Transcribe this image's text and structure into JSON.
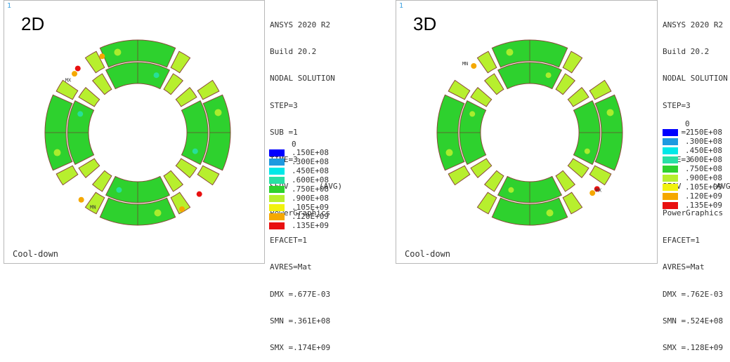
{
  "panels": [
    {
      "id": "2d",
      "corner": "1",
      "label": "2D",
      "footer": "Cool-down",
      "markers": {
        "min": "MN",
        "max": "MX"
      },
      "info": {
        "line1": "ANSYS 2020 R2",
        "line2": "Build 20.2",
        "line3": "NODAL SOLUTION",
        "step": "STEP=3",
        "sub": "SUB =1",
        "time": "TIME=3",
        "seqv": "SEQV",
        "avg": "(AVG)",
        "graphics": "PowerGraphics",
        "efacet": "EFACET=1",
        "avres": "AVRES=Mat",
        "dmx": "DMX =.677E-03",
        "smn": "SMN =.361E+08",
        "smx": "SMX =.174E+09"
      }
    },
    {
      "id": "3d",
      "corner": "1",
      "label": "3D",
      "footer": "Cool-down",
      "markers": {
        "min": "MN",
        "max": "MX"
      },
      "info": {
        "line1": "ANSYS 2020 R2",
        "line2": "Build 20.2",
        "line3": "NODAL SOLUTION",
        "step": "STEP=3",
        "sub": "SUB =2",
        "time": "TIME=3",
        "seqv": "SEQV",
        "avg": "(AVG)",
        "graphics": "PowerGraphics",
        "efacet": "EFACET=1",
        "avres": "AVRES=Mat",
        "dmx": "DMX =.762E-03",
        "smn": "SMN =.524E+08",
        "smx": "SMX =.128E+09"
      }
    }
  ],
  "legend": {
    "zero": "0",
    "levels": [
      {
        "label": ".150E+08",
        "color": "#0000ff"
      },
      {
        "label": ".300E+08",
        "color": "#1e9ae0"
      },
      {
        "label": ".450E+08",
        "color": "#00e8e8"
      },
      {
        "label": ".600E+08",
        "color": "#27e0a5"
      },
      {
        "label": ".750E+08",
        "color": "#2ed12e"
      },
      {
        "label": ".900E+08",
        "color": "#b7ef2e"
      },
      {
        "label": ".105E+09",
        "color": "#f2f20e"
      },
      {
        "label": ".120E+09",
        "color": "#f5a800"
      },
      {
        "label": ".135E+09",
        "color": "#e81010"
      }
    ]
  },
  "colors": {
    "main_fill": "#2ed12e",
    "light_fill": "#b7ef2e",
    "yellow": "#f2f20e",
    "orange": "#f5a800",
    "red": "#e81010",
    "cyan": "#27e0a5",
    "outline": "#8a4a3a"
  }
}
